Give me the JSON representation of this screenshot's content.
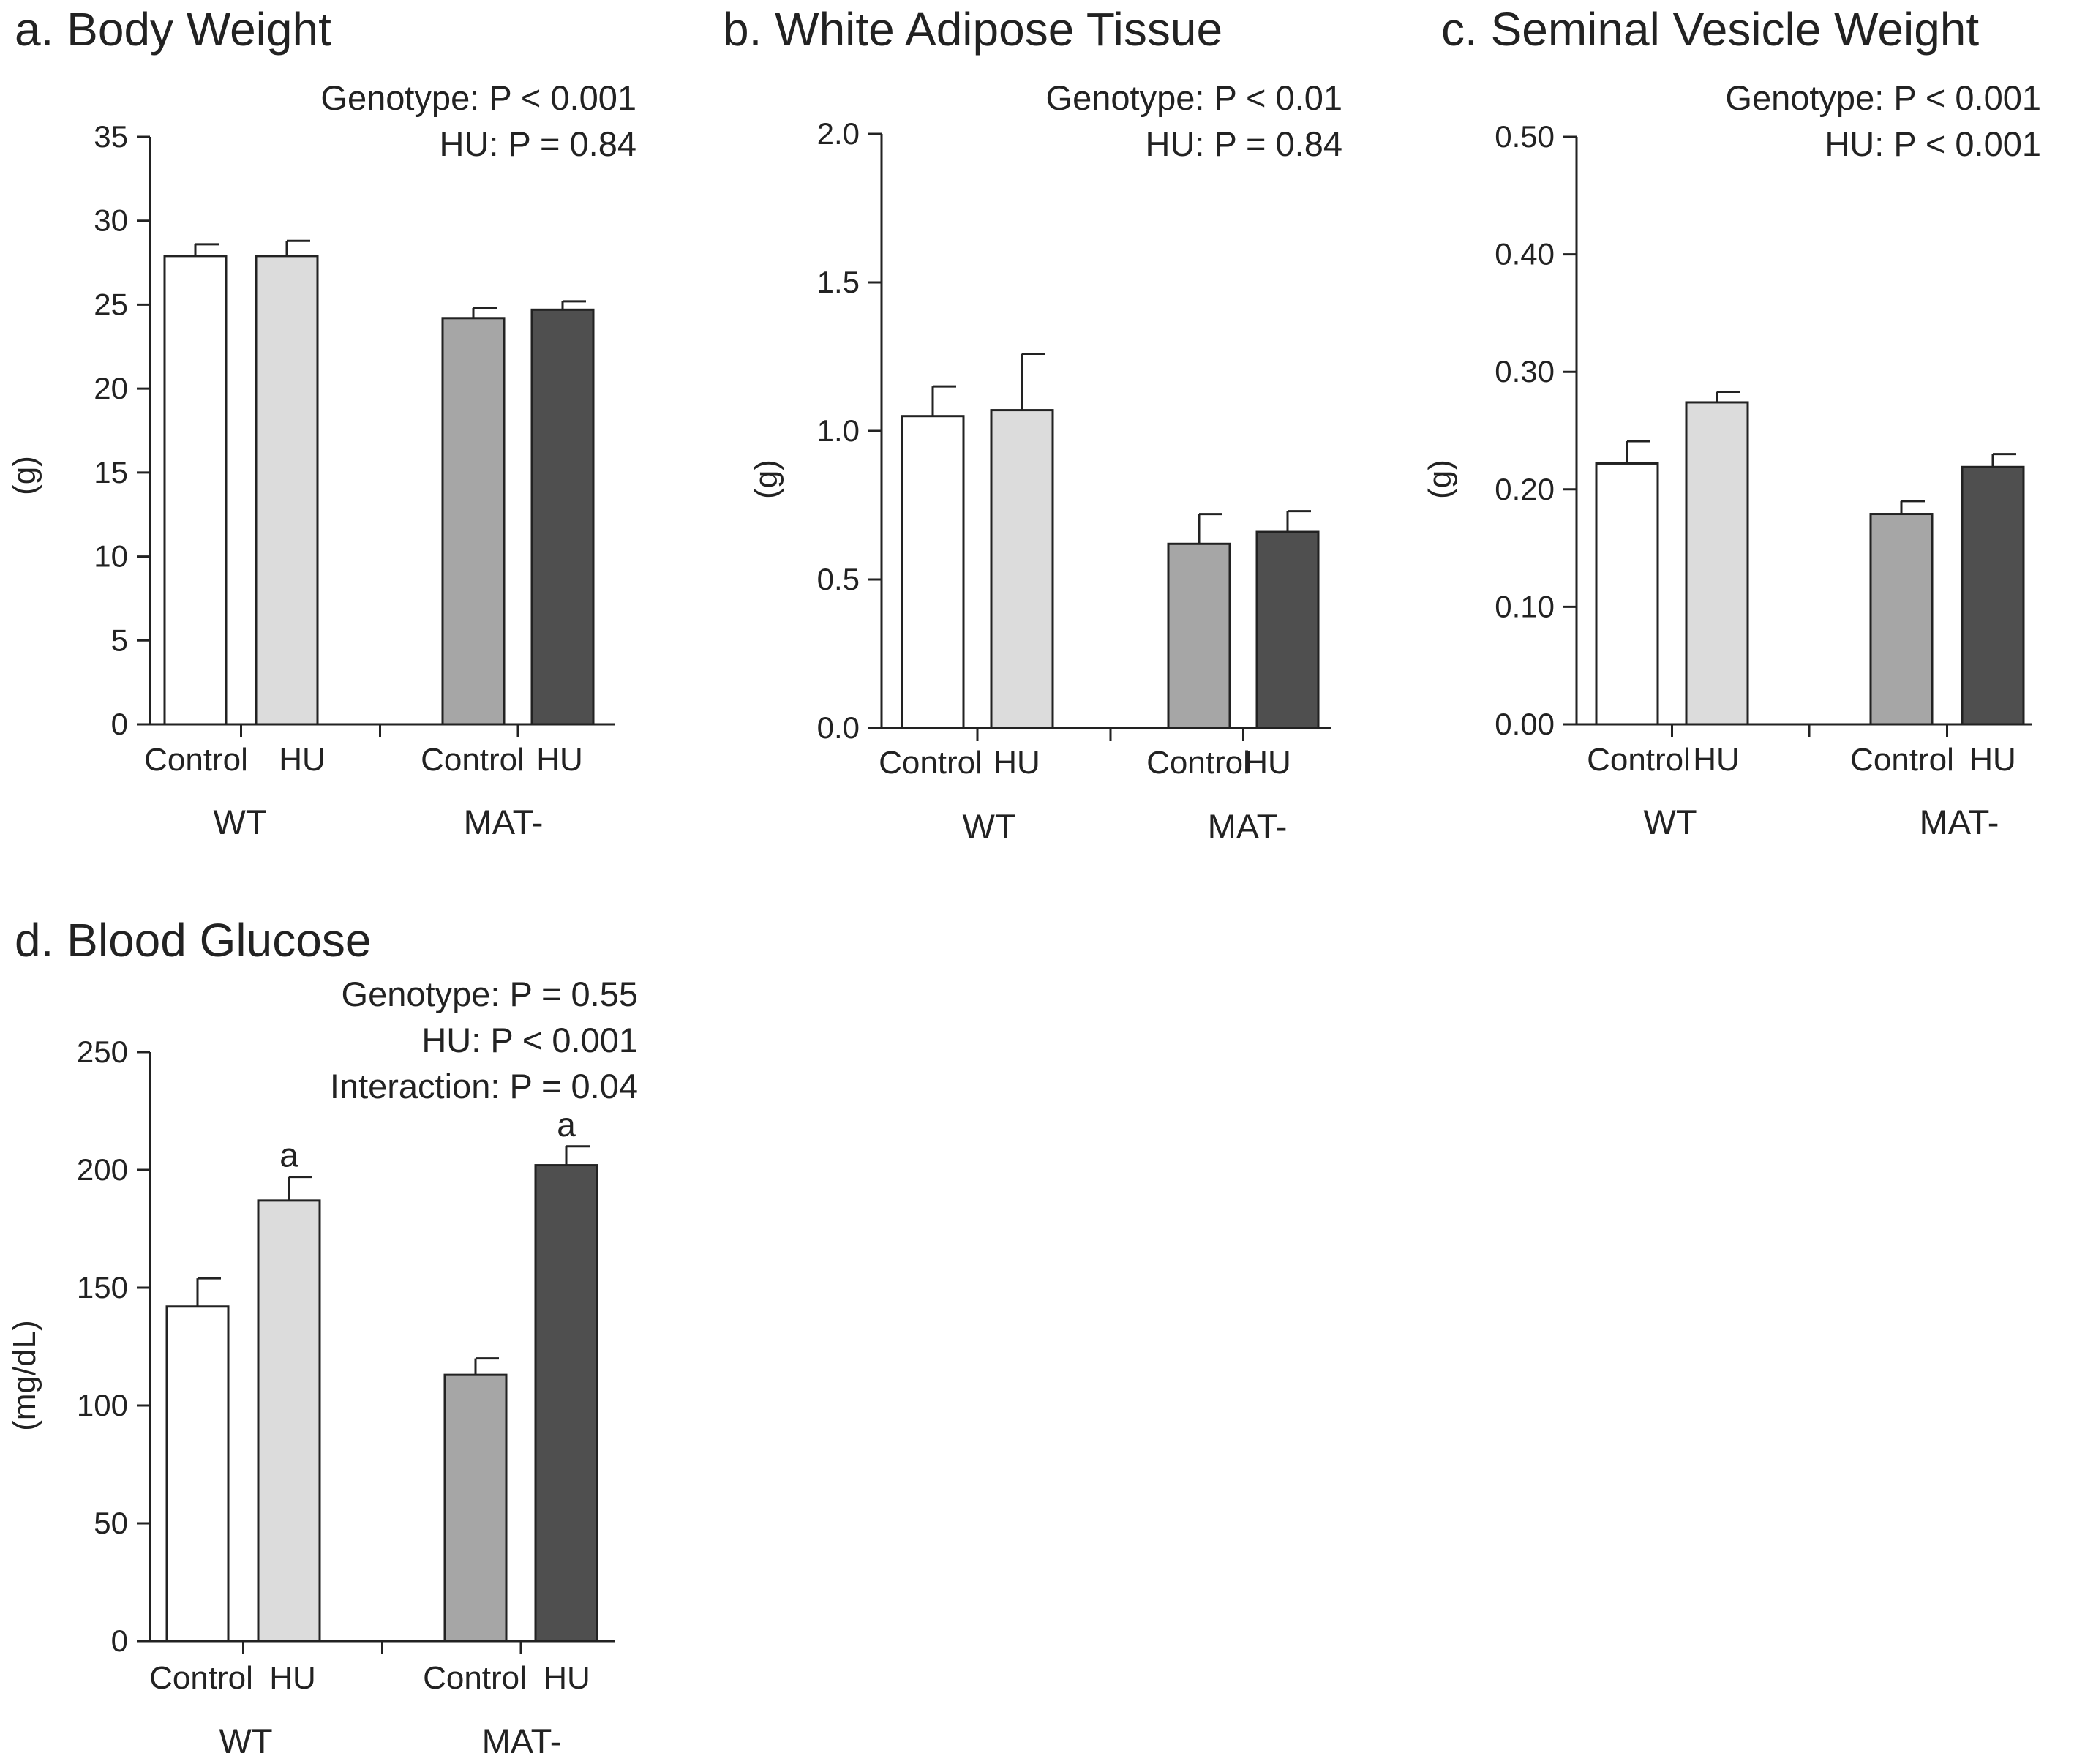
{
  "chart_data": [
    {
      "type": "bar",
      "title": "a.  Body Weight",
      "ylabel": "(g)",
      "ylim": [
        0,
        35
      ],
      "yticks": [
        "0",
        "5",
        "10",
        "15",
        "20",
        "25",
        "30",
        "35"
      ],
      "categories": [
        "Control",
        "HU",
        "Control",
        "HU"
      ],
      "groups": [
        "WT",
        "MAT-"
      ],
      "values": [
        27.9,
        27.9,
        24.2,
        24.7
      ],
      "errors": [
        0.7,
        0.9,
        0.6,
        0.5
      ],
      "stats": [
        "Genotype:  P < 0.001",
        "HU:  P = 0.84"
      ],
      "sig_labels": [
        "",
        "",
        "",
        ""
      ]
    },
    {
      "type": "bar",
      "title": "b.  White Adipose Tissue",
      "ylabel": "(g)",
      "ylim": [
        0,
        2.0
      ],
      "yticks": [
        "0.0",
        "0.5",
        "1.0",
        "1.5",
        "2.0"
      ],
      "categories": [
        "Control",
        "HU",
        "Control",
        "HU"
      ],
      "groups": [
        "WT",
        "MAT-"
      ],
      "values": [
        1.05,
        1.07,
        0.62,
        0.66
      ],
      "errors": [
        0.1,
        0.19,
        0.1,
        0.07
      ],
      "stats": [
        "Genotype:  P < 0.01",
        "HU:  P = 0.84"
      ],
      "sig_labels": [
        "",
        "",
        "",
        ""
      ]
    },
    {
      "type": "bar",
      "title": "c.  Seminal Vesicle Weight",
      "ylabel": "(g)",
      "ylim": [
        0,
        0.5
      ],
      "yticks": [
        "0.00",
        "0.10",
        "0.20",
        "0.30",
        "0.40",
        "0.50"
      ],
      "categories": [
        "Control",
        "HU",
        "Control",
        "HU"
      ],
      "groups": [
        "WT",
        "MAT-"
      ],
      "values": [
        0.222,
        0.274,
        0.179,
        0.219
      ],
      "errors": [
        0.019,
        0.009,
        0.011,
        0.011
      ],
      "stats": [
        "Genotype:  P < 0.001",
        "HU:  P < 0.001"
      ],
      "sig_labels": [
        "",
        "",
        "",
        ""
      ]
    },
    {
      "type": "bar",
      "title": "d.  Blood Glucose",
      "ylabel": "(mg/dL)",
      "ylim": [
        0,
        250
      ],
      "yticks": [
        "0",
        "50",
        "100",
        "150",
        "200",
        "250"
      ],
      "categories": [
        "Control",
        "HU",
        "Control",
        "HU"
      ],
      "groups": [
        "WT",
        "MAT-"
      ],
      "values": [
        142,
        187,
        113,
        202
      ],
      "errors": [
        12,
        10,
        7,
        8
      ],
      "stats": [
        "Genotype:  P = 0.55",
        "HU:  P < 0.001",
        "Interaction:  P = 0.04"
      ],
      "sig_labels": [
        "",
        "a",
        "",
        "a"
      ]
    }
  ],
  "colors": {
    "bars": [
      "#ffffff",
      "#dcdcdc",
      "#a6a6a6",
      "#4f4f4f"
    ],
    "stroke": "#222222"
  }
}
